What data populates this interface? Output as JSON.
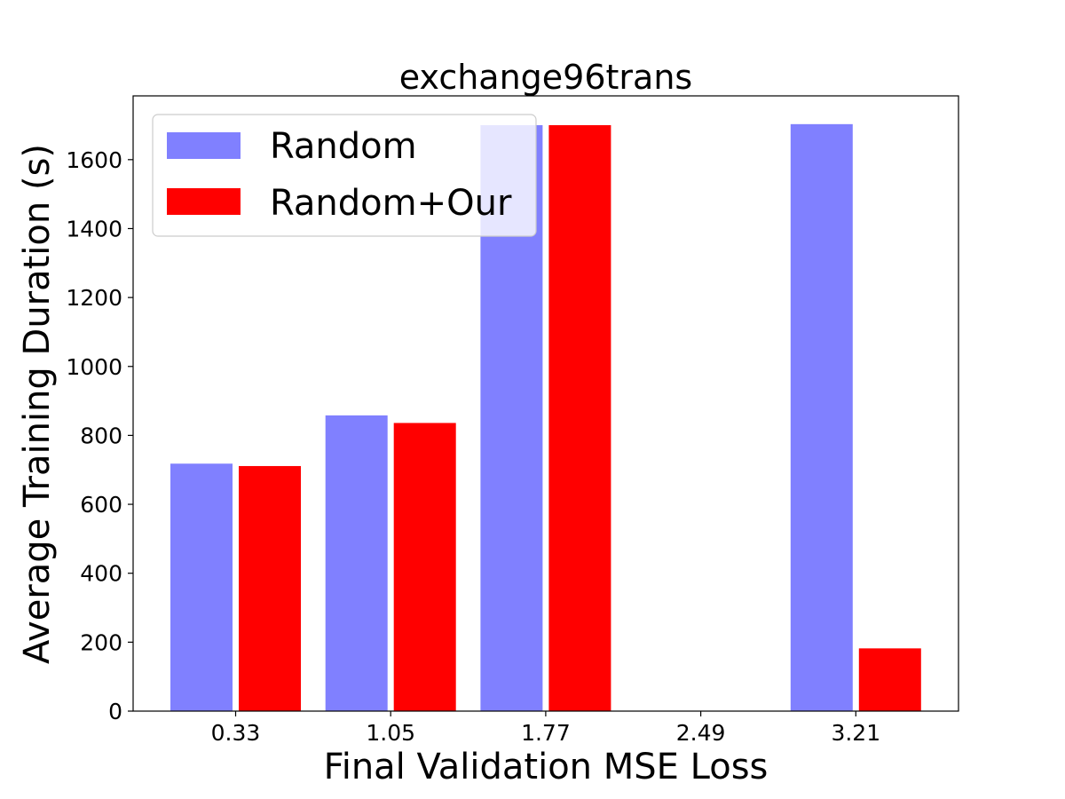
{
  "chart_data": {
    "type": "bar",
    "title": "exchange96trans",
    "xlabel": "Final Validation MSE Loss",
    "ylabel": "Average Training Duration (s)",
    "categories": [
      "0.33",
      "1.05",
      "1.77",
      "2.49",
      "3.21"
    ],
    "ylim": [
      0,
      1785
    ],
    "yticks": [
      0,
      200,
      400,
      600,
      800,
      1000,
      1200,
      1400,
      1600
    ],
    "grid": false,
    "legend_position": "top-left",
    "series": [
      {
        "name": "Random",
        "color": "#8080ff",
        "values": [
          718,
          858,
          1700,
          0,
          1703
        ]
      },
      {
        "name": "Random+Our",
        "color": "#ff0000",
        "values": [
          711,
          836,
          1700,
          0,
          182
        ]
      }
    ]
  }
}
